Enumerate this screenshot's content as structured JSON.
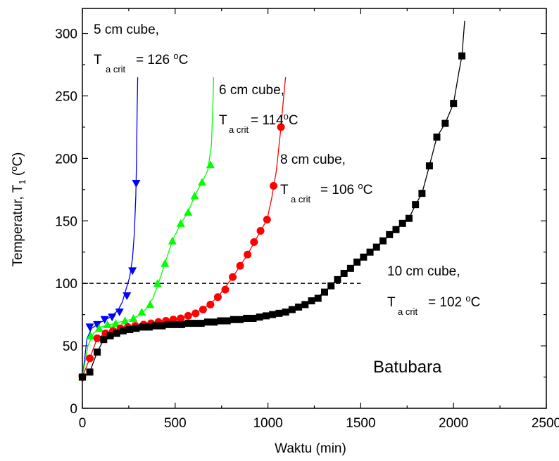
{
  "chart_data": {
    "type": "line",
    "xlabel": "Waktu (min)",
    "ylabel_main": "Temperatur, T",
    "ylabel_sub": "1",
    "ylabel_unit_open": " (",
    "ylabel_unit_sup": "o",
    "ylabel_unit_close": "C)",
    "xlim": [
      0,
      2500
    ],
    "ylim": [
      0,
      320
    ],
    "xticks": [
      0,
      500,
      1000,
      1500,
      2000,
      2500
    ],
    "yticks": [
      0,
      50,
      100,
      150,
      200,
      250,
      300
    ],
    "reference_line": {
      "y": 100,
      "x": [
        0,
        1500
      ],
      "style": "dashed"
    },
    "label": "Batubara",
    "series": [
      {
        "color": "#0000ff",
        "marker": "triangle-down",
        "annotation": {
          "title": "5 cm cube,",
          "sym": "T",
          "sub": "a crit",
          "value": "= 126 ",
          "sup": "o",
          "unit": "C"
        },
        "points": [
          [
            0,
            24
          ],
          [
            40,
            65
          ],
          [
            80,
            67
          ],
          [
            120,
            71
          ],
          [
            160,
            73
          ],
          [
            200,
            77
          ],
          [
            240,
            90
          ],
          [
            270,
            110
          ],
          [
            290,
            180
          ]
        ],
        "curve": [
          [
            0,
            24
          ],
          [
            25,
            56
          ],
          [
            50,
            64
          ],
          [
            100,
            69
          ],
          [
            150,
            73
          ],
          [
            190,
            78
          ],
          [
            215,
            85
          ],
          [
            235,
            95
          ],
          [
            255,
            105
          ],
          [
            270,
            120
          ],
          [
            280,
            140
          ],
          [
            288,
            170
          ],
          [
            292,
            200
          ],
          [
            295,
            240
          ],
          [
            298,
            265
          ]
        ]
      },
      {
        "color": "#00ff00",
        "marker": "triangle-up",
        "annotation": {
          "title": "6 cm cube,",
          "sym": "T",
          "sub": "a crit",
          "value": "= 114",
          "sup": "o",
          "unit": "C"
        },
        "points": [
          [
            0,
            25
          ],
          [
            45,
            58
          ],
          [
            90,
            64
          ],
          [
            135,
            67
          ],
          [
            180,
            68
          ],
          [
            230,
            70
          ],
          [
            275,
            72
          ],
          [
            320,
            77
          ],
          [
            365,
            83
          ],
          [
            405,
            100
          ],
          [
            445,
            116
          ],
          [
            485,
            134
          ],
          [
            530,
            148
          ],
          [
            570,
            157
          ],
          [
            605,
            170
          ],
          [
            645,
            181
          ],
          [
            690,
            195
          ]
        ],
        "curve": [
          [
            0,
            25
          ],
          [
            30,
            50
          ],
          [
            60,
            60
          ],
          [
            100,
            65
          ],
          [
            150,
            67
          ],
          [
            200,
            69
          ],
          [
            260,
            71
          ],
          [
            300,
            74
          ],
          [
            340,
            79
          ],
          [
            380,
            88
          ],
          [
            410,
            100
          ],
          [
            445,
            116
          ],
          [
            485,
            134
          ],
          [
            530,
            148
          ],
          [
            570,
            157
          ],
          [
            605,
            170
          ],
          [
            645,
            181
          ],
          [
            675,
            190
          ],
          [
            695,
            210
          ],
          [
            703,
            240
          ],
          [
            707,
            265
          ]
        ]
      },
      {
        "color": "#ff0000",
        "marker": "circle",
        "annotation": {
          "title": "8 cm cube,",
          "sym": "T",
          "sub": "a crit",
          "value": "= 106 ",
          "sup": "o",
          "unit": "C"
        },
        "points": [
          [
            0,
            25
          ],
          [
            40,
            40
          ],
          [
            80,
            56
          ],
          [
            125,
            60
          ],
          [
            165,
            62
          ],
          [
            205,
            64
          ],
          [
            245,
            65
          ],
          [
            285,
            66
          ],
          [
            330,
            67
          ],
          [
            370,
            68
          ],
          [
            410,
            69
          ],
          [
            450,
            70
          ],
          [
            490,
            71
          ],
          [
            530,
            72
          ],
          [
            570,
            74
          ],
          [
            610,
            76
          ],
          [
            650,
            79
          ],
          [
            690,
            83
          ],
          [
            730,
            89
          ],
          [
            770,
            95
          ],
          [
            810,
            105
          ],
          [
            850,
            114
          ],
          [
            890,
            123
          ],
          [
            925,
            133
          ],
          [
            960,
            142
          ],
          [
            995,
            151
          ],
          [
            1030,
            178
          ],
          [
            1070,
            225
          ]
        ],
        "curve": [
          [
            0,
            25
          ],
          [
            40,
            40
          ],
          [
            80,
            56
          ],
          [
            125,
            60
          ],
          [
            200,
            64
          ],
          [
            300,
            66
          ],
          [
            400,
            69
          ],
          [
            500,
            71
          ],
          [
            570,
            74
          ],
          [
            650,
            79
          ],
          [
            730,
            89
          ],
          [
            810,
            105
          ],
          [
            890,
            123
          ],
          [
            960,
            142
          ],
          [
            995,
            151
          ],
          [
            1020,
            168
          ],
          [
            1045,
            190
          ],
          [
            1070,
            225
          ],
          [
            1085,
            250
          ],
          [
            1095,
            265
          ]
        ]
      },
      {
        "color": "#000000",
        "marker": "square",
        "annotation": {
          "title": "10 cm cube,",
          "sym": "T",
          "sub": "a crit",
          "value": "= 102 ",
          "sup": "o",
          "unit": "C"
        },
        "points": [
          [
            0,
            25
          ],
          [
            40,
            29
          ],
          [
            80,
            45
          ],
          [
            115,
            55
          ],
          [
            150,
            58
          ],
          [
            185,
            60
          ],
          [
            220,
            62
          ],
          [
            255,
            63
          ],
          [
            290,
            64
          ],
          [
            325,
            65
          ],
          [
            360,
            65
          ],
          [
            395,
            66
          ],
          [
            430,
            66
          ],
          [
            465,
            67
          ],
          [
            500,
            67
          ],
          [
            535,
            67
          ],
          [
            570,
            68
          ],
          [
            605,
            68
          ],
          [
            640,
            68
          ],
          [
            675,
            69
          ],
          [
            710,
            69
          ],
          [
            745,
            70
          ],
          [
            780,
            70
          ],
          [
            815,
            71
          ],
          [
            850,
            71
          ],
          [
            885,
            72
          ],
          [
            920,
            72
          ],
          [
            955,
            73
          ],
          [
            990,
            74
          ],
          [
            1025,
            75
          ],
          [
            1060,
            76
          ],
          [
            1095,
            77
          ],
          [
            1130,
            79
          ],
          [
            1165,
            81
          ],
          [
            1200,
            83
          ],
          [
            1235,
            86
          ],
          [
            1270,
            88
          ],
          [
            1305,
            93
          ],
          [
            1340,
            98
          ],
          [
            1375,
            103
          ],
          [
            1410,
            108
          ],
          [
            1445,
            112
          ],
          [
            1480,
            117
          ],
          [
            1515,
            121
          ],
          [
            1550,
            125
          ],
          [
            1585,
            129
          ],
          [
            1620,
            134
          ],
          [
            1655,
            139
          ],
          [
            1690,
            143
          ],
          [
            1725,
            148
          ],
          [
            1760,
            152
          ],
          [
            1795,
            163
          ],
          [
            1830,
            172
          ],
          [
            1870,
            194
          ],
          [
            1910,
            217
          ],
          [
            1955,
            228
          ],
          [
            2000,
            244
          ],
          [
            2045,
            282
          ]
        ],
        "curve": [
          [
            0,
            25
          ],
          [
            40,
            29
          ],
          [
            80,
            45
          ],
          [
            115,
            55
          ],
          [
            150,
            58
          ],
          [
            220,
            62
          ],
          [
            300,
            64
          ],
          [
            400,
            66
          ],
          [
            500,
            67
          ],
          [
            600,
            68
          ],
          [
            700,
            69
          ],
          [
            800,
            70
          ],
          [
            900,
            72
          ],
          [
            1000,
            74
          ],
          [
            1100,
            77
          ],
          [
            1165,
            81
          ],
          [
            1235,
            86
          ],
          [
            1305,
            93
          ],
          [
            1375,
            103
          ],
          [
            1445,
            112
          ],
          [
            1515,
            121
          ],
          [
            1585,
            129
          ],
          [
            1655,
            139
          ],
          [
            1725,
            148
          ],
          [
            1760,
            152
          ],
          [
            1795,
            163
          ],
          [
            1830,
            172
          ],
          [
            1870,
            194
          ],
          [
            1910,
            217
          ],
          [
            1955,
            228
          ],
          [
            2000,
            244
          ],
          [
            2030,
            270
          ],
          [
            2045,
            282
          ],
          [
            2060,
            310
          ]
        ]
      }
    ]
  }
}
